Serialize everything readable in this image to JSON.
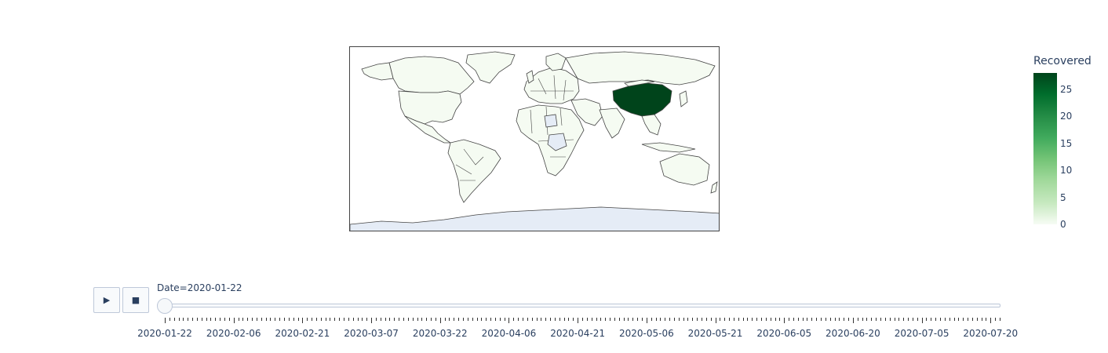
{
  "colorbar": {
    "title": "Recovered",
    "ticks": [
      "25",
      "20",
      "15",
      "10",
      "5",
      "0"
    ],
    "min": 0,
    "max": 28,
    "colors": [
      "#f7fcf5",
      "#c7e9c0",
      "#a1d99b",
      "#74c476",
      "#41ab5d",
      "#238b45",
      "#006d2c",
      "#00441b"
    ]
  },
  "map": {
    "highlighted_country": "China",
    "highlight_color": "#00441b",
    "base_color": "#f5fbf2",
    "no_data_color": "#e5ecf6"
  },
  "controls": {
    "play_icon": "▶",
    "stop_icon": "■"
  },
  "slider": {
    "current_label": "Date=2020-01-22",
    "position": 0,
    "tick_labels": [
      "2020-01-22",
      "2020-02-06",
      "2020-02-21",
      "2020-03-07",
      "2020-03-22",
      "2020-04-06",
      "2020-04-21",
      "2020-05-06",
      "2020-05-21",
      "2020-06-05",
      "2020-06-20",
      "2020-07-05",
      "2020-07-20"
    ]
  }
}
